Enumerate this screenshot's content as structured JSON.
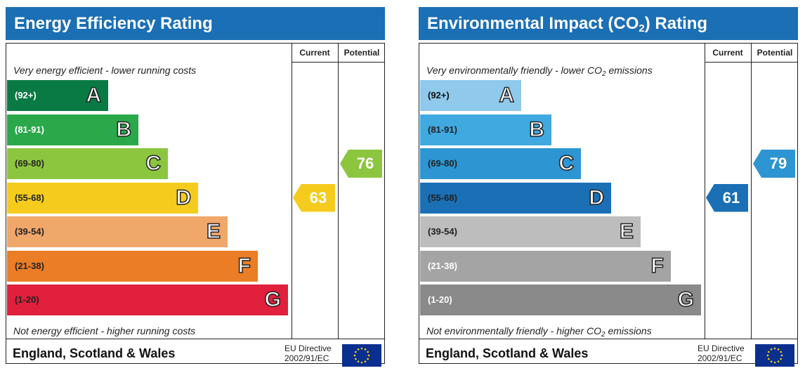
{
  "chart_data": [
    {
      "type": "bar",
      "title": "Energy Efficiency Rating",
      "columns": [
        "Current",
        "Potential"
      ],
      "top_caption": "Very energy efficient - lower running costs",
      "bottom_caption": "Not energy efficient - higher running costs",
      "bands": [
        {
          "range": "(92+)",
          "letter": "A",
          "color": "#0a7a45",
          "text_color": "#ffffff"
        },
        {
          "range": "(81-91)",
          "letter": "B",
          "color": "#2aa84a",
          "text_color": "#ffffff"
        },
        {
          "range": "(69-80)",
          "letter": "C",
          "color": "#8cc63f",
          "text_color": "#222222"
        },
        {
          "range": "(55-68)",
          "letter": "D",
          "color": "#f5cc1d",
          "text_color": "#222222"
        },
        {
          "range": "(39-54)",
          "letter": "E",
          "color": "#f0a76a",
          "text_color": "#222222"
        },
        {
          "range": "(21-38)",
          "letter": "F",
          "color": "#ea7d25",
          "text_color": "#222222"
        },
        {
          "range": "(1-20)",
          "letter": "G",
          "color": "#e0203c",
          "text_color": "#222222"
        }
      ],
      "current": {
        "value": "63",
        "band": "D",
        "color": "#f5cc1d"
      },
      "potential": {
        "value": "76",
        "band": "C",
        "color": "#8cc63f"
      }
    },
    {
      "type": "bar",
      "title_main": "Environmental Impact (CO",
      "title_sub": "2",
      "title_tail": ") Rating",
      "columns": [
        "Current",
        "Potential"
      ],
      "top_caption_main": "Very environmentally friendly - lower CO",
      "top_caption_sub": "2",
      "top_caption_tail": " emissions",
      "bottom_caption_main": "Not environmentally friendly - higher CO",
      "bottom_caption_sub": "2",
      "bottom_caption_tail": " emissions",
      "bands": [
        {
          "range": "(92+)",
          "letter": "A",
          "color": "#8fc9ec",
          "text_color": "#111111"
        },
        {
          "range": "(81-91)",
          "letter": "B",
          "color": "#3fa9e0",
          "text_color": "#222222"
        },
        {
          "range": "(69-80)",
          "letter": "C",
          "color": "#2d95d2",
          "text_color": "#222222"
        },
        {
          "range": "(55-68)",
          "letter": "D",
          "color": "#1a6fb5",
          "text_color": "#222222"
        },
        {
          "range": "(39-54)",
          "letter": "E",
          "color": "#bdbdbd",
          "text_color": "#222222"
        },
        {
          "range": "(21-38)",
          "letter": "F",
          "color": "#a4a4a4",
          "text_color": "#ffffff"
        },
        {
          "range": "(1-20)",
          "letter": "G",
          "color": "#8a8a8a",
          "text_color": "#ffffff"
        }
      ],
      "current": {
        "value": "61",
        "band": "D",
        "color": "#1a6fb5"
      },
      "potential": {
        "value": "79",
        "band": "C",
        "color": "#2d95d2"
      }
    }
  ],
  "footer": {
    "region": "England, Scotland & Wales",
    "directive_line1": "EU Directive",
    "directive_line2": "2002/91/EC"
  },
  "colors": {
    "title_bar": "#1b6fb4",
    "eu_flag": "#0a2f8f",
    "eu_stars": "#ffd200"
  }
}
